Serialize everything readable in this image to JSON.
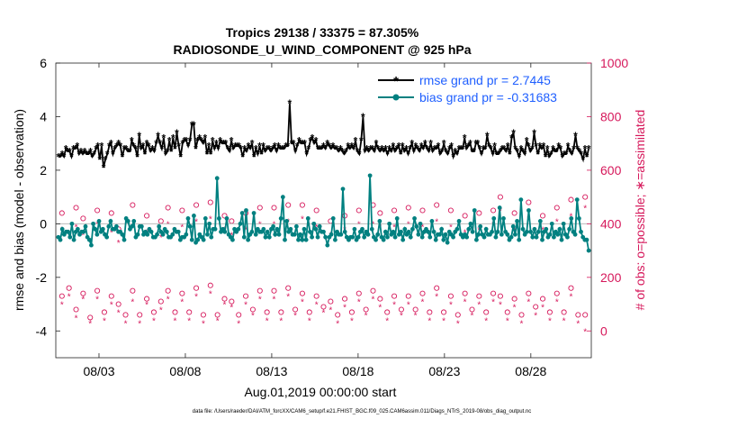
{
  "chart_data": {
    "type": "line",
    "title": "Tropics 29138 / 33375 = 87.305%",
    "subtitle": "RADIOSONDE_U_WIND_COMPONENT @ 925 hPa",
    "xlabel": "Aug.01,2019 00:00:00 start",
    "ylabel_left": "rmse and bias (model - observation)",
    "ylabel_right": "# of obs: o=possible; ∗=assimilated",
    "footer": "data file: /Users/raeder/DAI/ATM_forcXX/CAM6_setup/f.e21.FHIST_BGC.f09_025.CAM6assim.011/Diags_NTrS_2019-08/obs_diag_output.nc",
    "xlim": [
      0.5,
      31.5
    ],
    "ylim_left": [
      -5,
      6
    ],
    "ylim_right": [
      -100,
      1000
    ],
    "x_ticks": [
      3,
      8,
      13,
      18,
      23,
      28
    ],
    "x_tick_labels": [
      "08/03",
      "08/08",
      "08/13",
      "08/18",
      "08/23",
      "08/28"
    ],
    "y_left_ticks": [
      -4,
      -2,
      0,
      2,
      4,
      6
    ],
    "y_left_tick_labels": [
      "-4",
      "-2",
      "0",
      "2",
      "4",
      "6"
    ],
    "y_right_ticks": [
      0,
      200,
      400,
      600,
      800,
      1000
    ],
    "y_right_tick_labels": [
      "0",
      "200",
      "400",
      "600",
      "800",
      "1000"
    ],
    "legend_position": "top-right",
    "colors": {
      "rmse": "#000000",
      "bias": "#008080",
      "obs": "#d6185b",
      "legend_text": "#1f5fff",
      "zero_line": "#bbbbbb"
    },
    "series": [
      {
        "name": "rmse grand pr = 2.7445",
        "axis": "left",
        "values": [
          2.5,
          2.5,
          2.6,
          2.5,
          2.8,
          2.7,
          2.7,
          2.5,
          2.8,
          2.8,
          2.9,
          2.6,
          2.7,
          2.6,
          2.7,
          2.6,
          2.6,
          2.7,
          2.5,
          2.6,
          2.8,
          2.9,
          2.4,
          2.9,
          2.1,
          2.4,
          2.6,
          2.9,
          3.0,
          2.6,
          2.8,
          2.9,
          3.0,
          2.9,
          2.5,
          2.8,
          2.8,
          2.7,
          2.7,
          3.1,
          2.9,
          2.8,
          2.5,
          3.3,
          2.8,
          2.9,
          2.6,
          3.0,
          2.9,
          2.7,
          2.8,
          2.7,
          3.0,
          3.3,
          3.0,
          2.8,
          3.2,
          2.6,
          2.7,
          3.1,
          2.7,
          3.2,
          2.8,
          3.4,
          2.9,
          2.5,
          3.0,
          3.1,
          3.1,
          2.9,
          3.1,
          3.7,
          3.7,
          2.8,
          3.1,
          3.2,
          3.1,
          3.0,
          3.2,
          2.6,
          2.9,
          2.6,
          3.1,
          2.8,
          3.0,
          2.8,
          3.1,
          3.0,
          3.0,
          3.0,
          2.8,
          2.7,
          3.1,
          2.8,
          2.9,
          2.9,
          2.9,
          2.8,
          2.5,
          2.8,
          2.7,
          2.9,
          2.8,
          3.0,
          2.5,
          2.8,
          2.6,
          2.9,
          2.6,
          2.9,
          2.7,
          2.8,
          2.8,
          2.7,
          2.8,
          2.9,
          2.7,
          2.9,
          2.8,
          2.8,
          2.8,
          2.9,
          2.9,
          4.5,
          3.0,
          3.0,
          2.7,
          2.9,
          3.1,
          3.0,
          3.0,
          3.0,
          2.6,
          2.8,
          3.1,
          3.2,
          3.0,
          3.1,
          2.8,
          2.8,
          2.8,
          2.9,
          2.8,
          3.0,
          2.9,
          2.8,
          2.9,
          2.8,
          2.8,
          2.7,
          2.8,
          2.7,
          2.6,
          2.7,
          2.9,
          2.8,
          2.9,
          2.8,
          3.1,
          2.7,
          2.6,
          3.1,
          4.0,
          2.7,
          2.8,
          2.7,
          2.8,
          2.8,
          2.7,
          3.0,
          2.8,
          2.7,
          2.8,
          2.7,
          2.8,
          2.6,
          2.8,
          2.7,
          2.9,
          2.7,
          2.8,
          2.9,
          2.6,
          2.9,
          2.7,
          2.8,
          2.6,
          2.8,
          3.0,
          2.7,
          2.9,
          2.8,
          2.7,
          2.9,
          2.8,
          3.0,
          2.8,
          2.7,
          3.0,
          2.7,
          2.8,
          2.8,
          2.9,
          2.6,
          2.7,
          3.0,
          2.7,
          2.6,
          2.8,
          2.9,
          2.5,
          2.7,
          2.6,
          2.8,
          2.8,
          2.8,
          3.2,
          2.8,
          2.9,
          3.0,
          2.7,
          2.7,
          3.0,
          3.0,
          2.8,
          2.6,
          2.8,
          2.8,
          3.3,
          2.9,
          2.8,
          2.6,
          2.9,
          2.6,
          2.6,
          2.7,
          2.8,
          2.8,
          2.7,
          2.9,
          2.6,
          3.2,
          3.4,
          2.8,
          2.7,
          2.5,
          2.8,
          2.7,
          2.6,
          3.1,
          2.9,
          2.7,
          2.8,
          3.4,
          2.9,
          2.6,
          2.9,
          2.8,
          2.9,
          2.5,
          2.8,
          2.5,
          2.6,
          2.8,
          2.7,
          2.7,
          2.9,
          2.8,
          2.5,
          2.6,
          2.6,
          2.9,
          2.7,
          2.6,
          2.8,
          3.3,
          2.8,
          2.7,
          2.6,
          2.4,
          2.8,
          2.5,
          2.8
        ],
        "color": "#000000",
        "marker": "*"
      },
      {
        "name": "bias grand pr = -0.31683",
        "axis": "left",
        "values": [
          -0.5,
          -0.6,
          -0.2,
          -0.4,
          -0.3,
          -0.3,
          -0.5,
          0.0,
          -0.6,
          -0.3,
          -0.2,
          -0.4,
          -0.3,
          -0.3,
          -0.1,
          -0.5,
          -0.6,
          -0.8,
          0.0,
          -0.2,
          -0.4,
          0.1,
          -0.3,
          -0.2,
          -0.4,
          -0.5,
          -0.1,
          0.1,
          -0.2,
          -0.2,
          -0.1,
          -0.3,
          -0.3,
          -0.4,
          -0.6,
          0.2,
          0.1,
          -0.2,
          -0.1,
          0.1,
          -0.5,
          -0.4,
          -0.1,
          -0.1,
          -0.4,
          -0.3,
          -0.4,
          -0.2,
          -0.3,
          -0.5,
          -0.5,
          -0.4,
          -0.1,
          -0.3,
          -0.4,
          -0.2,
          -0.3,
          -0.5,
          -0.5,
          -0.4,
          -0.2,
          -0.3,
          -0.3,
          -0.6,
          -0.5,
          -0.5,
          -0.4,
          0.2,
          -0.1,
          -0.6,
          0.3,
          -0.7,
          -0.6,
          -0.4,
          -0.5,
          -0.6,
          0.2,
          -0.4,
          0.0,
          -0.5,
          -0.2,
          -0.2,
          1.7,
          0.2,
          -0.3,
          -0.2,
          -0.3,
          0.2,
          -0.4,
          -0.5,
          -0.6,
          -0.2,
          -0.3,
          -0.2,
          0.0,
          0.4,
          -0.5,
          0.5,
          -0.6,
          -0.4,
          -0.3,
          0.4,
          -0.4,
          -0.2,
          -0.3,
          -0.3,
          -0.2,
          -0.5,
          -0.3,
          -0.5,
          -0.2,
          -0.1,
          -0.4,
          -0.2,
          -0.4,
          0.2,
          1.0,
          -0.6,
          0.1,
          -0.3,
          -0.2,
          -0.4,
          -0.4,
          -0.1,
          -0.6,
          -0.4,
          -0.6,
          -0.2,
          -0.6,
          0.2,
          -0.3,
          -0.5,
          0.0,
          -0.2,
          -0.5,
          -0.1,
          -0.3,
          -0.3,
          -0.5,
          -0.8,
          -0.5,
          -0.4,
          0.2,
          -0.6,
          -0.3,
          -0.4,
          -0.4,
          1.3,
          -0.3,
          -0.5,
          -0.6,
          -0.5,
          -0.5,
          -0.2,
          -0.6,
          -0.5,
          -0.3,
          -0.2,
          -0.5,
          -0.3,
          -0.4,
          1.8,
          -0.2,
          -0.5,
          -0.6,
          -0.4,
          0.1,
          -0.5,
          -0.6,
          -0.3,
          -0.5,
          0.0,
          -0.4,
          -0.3,
          -0.5,
          0.2,
          -0.4,
          -0.3,
          -0.6,
          -0.2,
          -0.4,
          -0.3,
          -0.5,
          -0.2,
          0.2,
          -0.1,
          -0.4,
          0.0,
          -0.5,
          -0.3,
          -0.2,
          -0.3,
          -0.5,
          0.1,
          -0.3,
          -0.6,
          -0.4,
          -0.4,
          -0.2,
          -0.6,
          -0.4,
          -0.7,
          -0.3,
          -0.4,
          -0.5,
          -0.3,
          -0.2,
          0.1,
          -0.4,
          -0.5,
          -0.4,
          -0.5,
          -0.2,
          0.0,
          -0.3,
          0.5,
          -0.6,
          -0.4,
          -0.1,
          -0.4,
          -0.5,
          -0.2,
          -0.4,
          -0.4,
          -0.3,
          0.2,
          -0.5,
          -0.3,
          0.6,
          -0.4,
          0.2,
          -0.3,
          -0.4,
          -0.6,
          -0.5,
          -0.1,
          -0.4,
          0.1,
          -0.6,
          0.9,
          -0.2,
          -0.4,
          -0.3,
          0.5,
          -0.3,
          -0.5,
          -0.2,
          -0.5,
          -0.3,
          0.1,
          -0.6,
          -0.3,
          -0.2,
          -0.5,
          -0.4,
          0.0,
          -0.5,
          -0.3,
          -0.4,
          -0.2,
          -0.6,
          0.0,
          -0.4,
          -0.5,
          -0.2,
          0.2,
          -0.3,
          -0.4,
          0.9,
          0.2,
          -0.3,
          -0.5,
          -0.6,
          -0.6,
          -1.0
        ],
        "color": "#008080",
        "marker": "o"
      }
    ],
    "obs_counts": [
      {
        "name": "possible",
        "axis": "right",
        "marker": "o",
        "values": [
          440,
          0,
          460,
          420,
          0,
          450,
          0,
          440,
          380,
          0,
          470,
          0,
          430,
          0,
          410,
          460,
          0,
          450,
          0,
          470,
          0,
          480,
          0,
          430,
          410,
          0,
          440,
          0,
          460,
          0,
          460,
          0,
          470,
          0,
          470,
          0,
          450,
          0,
          410,
          0,
          430,
          0,
          450,
          0,
          470,
          440,
          0,
          450,
          0,
          460,
          0,
          450,
          0,
          470,
          0,
          450,
          0,
          430,
          0,
          440,
          0,
          450,
          500,
          0,
          440,
          0,
          480,
          0,
          430,
          0,
          460,
          0,
          490,
          0,
          500
        ],
        "values_low": [
          130,
          160,
          80,
          140,
          50,
          150,
          70,
          130,
          100,
          60,
          150,
          60,
          120,
          70,
          110,
          150,
          70,
          140,
          70,
          160,
          60,
          170,
          60,
          120,
          110,
          60,
          130,
          80,
          150,
          70,
          150,
          70,
          160,
          80,
          140,
          70,
          130,
          90,
          110,
          60,
          120,
          70,
          140,
          80,
          150,
          120,
          70,
          130,
          80,
          130,
          80,
          140,
          70,
          160,
          70,
          130,
          60,
          140,
          80,
          130,
          70,
          140,
          130,
          70,
          120,
          60,
          140,
          90,
          120,
          70,
          140,
          70,
          160,
          60,
          60
        ]
      },
      {
        "name": "assimilated",
        "axis": "right",
        "marker": "*",
        "values": [
          380,
          0,
          390,
          360,
          0,
          400,
          0,
          370,
          330,
          0,
          390,
          0,
          370,
          0,
          350,
          400,
          0,
          390,
          0,
          410,
          0,
          420,
          0,
          380,
          360,
          0,
          380,
          0,
          400,
          0,
          400,
          0,
          410,
          0,
          420,
          0,
          390,
          0,
          360,
          0,
          380,
          0,
          400,
          0,
          400,
          390,
          0,
          390,
          0,
          400,
          0,
          390,
          0,
          410,
          0,
          390,
          0,
          370,
          0,
          380,
          0,
          400,
          450,
          0,
          380,
          0,
          420,
          0,
          380,
          0,
          410,
          0,
          430,
          0,
          460
        ],
        "values_low": [
          100,
          130,
          50,
          120,
          30,
          120,
          40,
          100,
          70,
          30,
          110,
          30,
          100,
          40,
          80,
          120,
          40,
          110,
          40,
          130,
          30,
          140,
          40,
          100,
          90,
          30,
          100,
          60,
          120,
          40,
          120,
          40,
          130,
          60,
          110,
          40,
          100,
          70,
          80,
          30,
          90,
          40,
          110,
          60,
          120,
          90,
          40,
          100,
          60,
          100,
          60,
          110,
          40,
          130,
          40,
          100,
          30,
          110,
          60,
          100,
          40,
          110,
          100,
          40,
          90,
          30,
          110,
          60,
          90,
          40,
          110,
          40,
          130,
          30,
          0
        ]
      }
    ]
  }
}
